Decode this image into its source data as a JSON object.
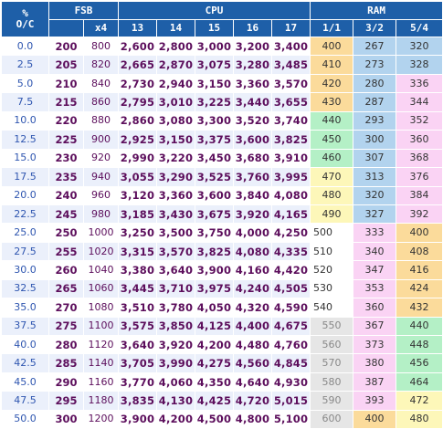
{
  "headers": {
    "oc_line1": "%",
    "oc_line2": "O/C",
    "fsb": "FSB",
    "cpu": "CPU",
    "ram": "RAM",
    "x4": "x4",
    "cpu_multipliers": [
      "13",
      "14",
      "15",
      "16",
      "17"
    ],
    "ram_ratios": [
      "1/1",
      "3/2",
      "5/4"
    ]
  },
  "colors": {
    "header": "#1e5fa8",
    "orange": "#fbdb9b",
    "blue": "#b2d3ee",
    "pink": "#fad3f4",
    "green": "#b4f0c6",
    "yellow": "#fdf7b9",
    "gray": "#e6e6e6"
  },
  "rows": [
    {
      "oc": "0.0",
      "fsb": "200",
      "x4": "800",
      "cpu": [
        "2,600",
        "2,800",
        "3,000",
        "3,200",
        "3,400"
      ],
      "ram": [
        "400",
        "267",
        "320"
      ],
      "ram_colors": [
        "orange",
        "blue",
        "blue"
      ]
    },
    {
      "oc": "2.5",
      "fsb": "205",
      "x4": "820",
      "cpu": [
        "2,665",
        "2,870",
        "3,075",
        "3,280",
        "3,485"
      ],
      "ram": [
        "410",
        "273",
        "328"
      ],
      "ram_colors": [
        "orange",
        "blue",
        "blue"
      ]
    },
    {
      "oc": "5.0",
      "fsb": "210",
      "x4": "840",
      "cpu": [
        "2,730",
        "2,940",
        "3,150",
        "3,360",
        "3,570"
      ],
      "ram": [
        "420",
        "280",
        "336"
      ],
      "ram_colors": [
        "orange",
        "blue",
        "pink"
      ]
    },
    {
      "oc": "7.5",
      "fsb": "215",
      "x4": "860",
      "cpu": [
        "2,795",
        "3,010",
        "3,225",
        "3,440",
        "3,655"
      ],
      "ram": [
        "430",
        "287",
        "344"
      ],
      "ram_colors": [
        "orange",
        "blue",
        "pink"
      ]
    },
    {
      "oc": "10.0",
      "fsb": "220",
      "x4": "880",
      "cpu": [
        "2,860",
        "3,080",
        "3,300",
        "3,520",
        "3,740"
      ],
      "ram": [
        "440",
        "293",
        "352"
      ],
      "ram_colors": [
        "green",
        "blue",
        "pink"
      ]
    },
    {
      "oc": "12.5",
      "fsb": "225",
      "x4": "900",
      "cpu": [
        "2,925",
        "3,150",
        "3,375",
        "3,600",
        "3,825"
      ],
      "ram": [
        "450",
        "300",
        "360"
      ],
      "ram_colors": [
        "green",
        "blue",
        "pink"
      ]
    },
    {
      "oc": "15.0",
      "fsb": "230",
      "x4": "920",
      "cpu": [
        "2,990",
        "3,220",
        "3,450",
        "3,680",
        "3,910"
      ],
      "ram": [
        "460",
        "307",
        "368"
      ],
      "ram_colors": [
        "green",
        "blue",
        "pink"
      ]
    },
    {
      "oc": "17.5",
      "fsb": "235",
      "x4": "940",
      "cpu": [
        "3,055",
        "3,290",
        "3,525",
        "3,760",
        "3,995"
      ],
      "ram": [
        "470",
        "313",
        "376"
      ],
      "ram_colors": [
        "yellow",
        "blue",
        "pink"
      ]
    },
    {
      "oc": "20.0",
      "fsb": "240",
      "x4": "960",
      "cpu": [
        "3,120",
        "3,360",
        "3,600",
        "3,840",
        "4,080"
      ],
      "ram": [
        "480",
        "320",
        "384"
      ],
      "ram_colors": [
        "yellow",
        "blue",
        "pink"
      ]
    },
    {
      "oc": "22.5",
      "fsb": "245",
      "x4": "980",
      "cpu": [
        "3,185",
        "3,430",
        "3,675",
        "3,920",
        "4,165"
      ],
      "ram": [
        "490",
        "327",
        "392"
      ],
      "ram_colors": [
        "yellow",
        "blue",
        "pink"
      ]
    },
    {
      "oc": "25.0",
      "fsb": "250",
      "x4": "1000",
      "cpu": [
        "3,250",
        "3,500",
        "3,750",
        "4,000",
        "4,250"
      ],
      "ram": [
        "500",
        "333",
        "400"
      ],
      "ram_colors": [
        "white",
        "pink",
        "orange"
      ]
    },
    {
      "oc": "27.5",
      "fsb": "255",
      "x4": "1020",
      "cpu": [
        "3,315",
        "3,570",
        "3,825",
        "4,080",
        "4,335"
      ],
      "ram": [
        "510",
        "340",
        "408"
      ],
      "ram_colors": [
        "white",
        "pink",
        "orange"
      ]
    },
    {
      "oc": "30.0",
      "fsb": "260",
      "x4": "1040",
      "cpu": [
        "3,380",
        "3,640",
        "3,900",
        "4,160",
        "4,420"
      ],
      "ram": [
        "520",
        "347",
        "416"
      ],
      "ram_colors": [
        "white",
        "pink",
        "orange"
      ]
    },
    {
      "oc": "32.5",
      "fsb": "265",
      "x4": "1060",
      "cpu": [
        "3,445",
        "3,710",
        "3,975",
        "4,240",
        "4,505"
      ],
      "ram": [
        "530",
        "353",
        "424"
      ],
      "ram_colors": [
        "white",
        "pink",
        "orange"
      ]
    },
    {
      "oc": "35.0",
      "fsb": "270",
      "x4": "1080",
      "cpu": [
        "3,510",
        "3,780",
        "4,050",
        "4,320",
        "4,590"
      ],
      "ram": [
        "540",
        "360",
        "432"
      ],
      "ram_colors": [
        "white",
        "pink",
        "orange"
      ]
    },
    {
      "oc": "37.5",
      "fsb": "275",
      "x4": "1100",
      "cpu": [
        "3,575",
        "3,850",
        "4,125",
        "4,400",
        "4,675"
      ],
      "ram": [
        "550",
        "367",
        "440"
      ],
      "ram_colors": [
        "gray",
        "pink",
        "green"
      ]
    },
    {
      "oc": "40.0",
      "fsb": "280",
      "x4": "1120",
      "cpu": [
        "3,640",
        "3,920",
        "4,200",
        "4,480",
        "4,760"
      ],
      "ram": [
        "560",
        "373",
        "448"
      ],
      "ram_colors": [
        "gray",
        "pink",
        "green"
      ]
    },
    {
      "oc": "42.5",
      "fsb": "285",
      "x4": "1140",
      "cpu": [
        "3,705",
        "3,990",
        "4,275",
        "4,560",
        "4,845"
      ],
      "ram": [
        "570",
        "380",
        "456"
      ],
      "ram_colors": [
        "gray",
        "pink",
        "green"
      ]
    },
    {
      "oc": "45.0",
      "fsb": "290",
      "x4": "1160",
      "cpu": [
        "3,770",
        "4,060",
        "4,350",
        "4,640",
        "4,930"
      ],
      "ram": [
        "580",
        "387",
        "464"
      ],
      "ram_colors": [
        "gray",
        "pink",
        "green"
      ]
    },
    {
      "oc": "47.5",
      "fsb": "295",
      "x4": "1180",
      "cpu": [
        "3,835",
        "4,130",
        "4,425",
        "4,720",
        "5,015"
      ],
      "ram": [
        "590",
        "393",
        "472"
      ],
      "ram_colors": [
        "gray",
        "pink",
        "yellow"
      ]
    },
    {
      "oc": "50.0",
      "fsb": "300",
      "x4": "1200",
      "cpu": [
        "3,900",
        "4,200",
        "4,500",
        "4,800",
        "5,100"
      ],
      "ram": [
        "600",
        "400",
        "480"
      ],
      "ram_colors": [
        "gray",
        "orange",
        "yellow"
      ]
    }
  ]
}
